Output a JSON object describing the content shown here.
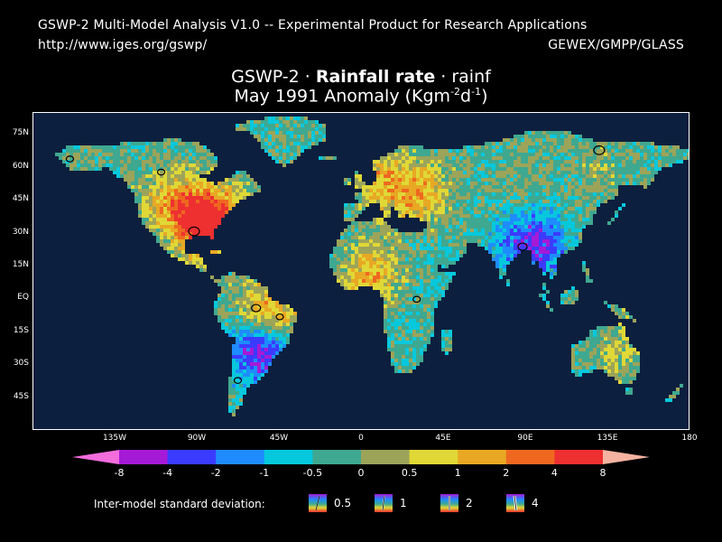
{
  "header": {
    "line1": "GSWP-2 Multi-Model Analysis V1.0 -- Experimental Product for Research Applications",
    "url": "http://www.iges.org/gswp/",
    "org": "GEWEX/GMPP/GLASS"
  },
  "title": {
    "prefix": "GSWP-2 · ",
    "bold": "Rainfall rate",
    "suffix": " · rainf",
    "line2_main": "May 1991 Anomaly (Kgm",
    "line2_sup1": "-2",
    "line2_mid": "d",
    "line2_sup2": "-1",
    "line2_end": ")"
  },
  "map": {
    "ocean_color": "#0d1f3e",
    "lat_labels": [
      "75N",
      "60N",
      "45N",
      "30N",
      "15N",
      "EQ",
      "15S",
      "30S",
      "45S"
    ],
    "lat_values": [
      75,
      60,
      45,
      30,
      15,
      0,
      -15,
      -30,
      -45
    ],
    "lon_labels": [
      "135W",
      "90W",
      "45W",
      "0",
      "45E",
      "90E",
      "135E",
      "180"
    ],
    "lon_values": [
      -135,
      -90,
      -45,
      0,
      45,
      90,
      135,
      180
    ],
    "lon_range": [
      -180,
      180
    ],
    "lat_range": [
      -60,
      85
    ]
  },
  "colorbar": {
    "labels": [
      "-8",
      "-4",
      "-2",
      "-1",
      "-0.5",
      "0",
      "0.5",
      "1",
      "2",
      "4",
      "8"
    ],
    "colors": [
      "#f36ddd",
      "#a51ad6",
      "#3b3bff",
      "#1e8cff",
      "#06c8dc",
      "#3fa890",
      "#9ca45a",
      "#e0d836",
      "#e8a824",
      "#ee6820",
      "#ee3030",
      "#f5b2a0"
    ]
  },
  "sd_legend": {
    "title": "Inter-model standard deviation:",
    "items": [
      "0.5",
      "1",
      "2",
      "4"
    ]
  }
}
